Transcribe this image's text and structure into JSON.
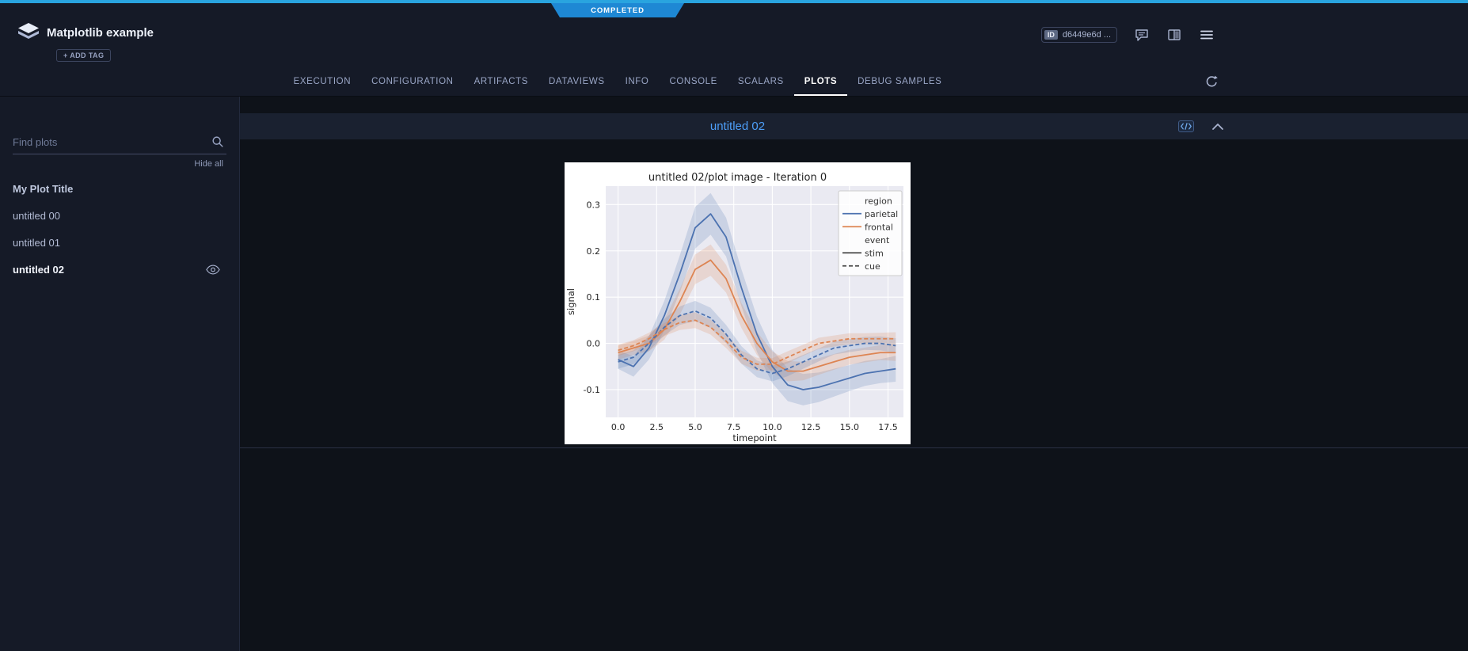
{
  "ribbon": {
    "status_label": "COMPLETED"
  },
  "header": {
    "app_title": "Matplotlib example",
    "add_tag_label": "+ ADD TAG",
    "id_chip": {
      "label": "ID",
      "value": "d6449e6d ..."
    },
    "icons": [
      "app-logo",
      "comment-icon",
      "panels-icon",
      "menu-icon"
    ]
  },
  "tabs": {
    "items": [
      {
        "label": "EXECUTION",
        "active": false
      },
      {
        "label": "CONFIGURATION",
        "active": false
      },
      {
        "label": "ARTIFACTS",
        "active": false
      },
      {
        "label": "DATAVIEWS",
        "active": false
      },
      {
        "label": "INFO",
        "active": false
      },
      {
        "label": "CONSOLE",
        "active": false
      },
      {
        "label": "SCALARS",
        "active": false
      },
      {
        "label": "PLOTS",
        "active": true
      },
      {
        "label": "DEBUG SAMPLES",
        "active": false
      }
    ],
    "icons": [
      "refresh-icon"
    ]
  },
  "sidebar": {
    "search_placeholder": "Find plots",
    "search_value": "",
    "hide_all_label": "Hide all",
    "plots": [
      {
        "label": "My Plot Title",
        "active": false
      },
      {
        "label": "untitled 00",
        "active": false
      },
      {
        "label": "untitled 01",
        "active": false
      },
      {
        "label": "untitled 02",
        "active": true
      }
    ],
    "icons": [
      "search-icon",
      "eye-icon"
    ]
  },
  "plot_section": {
    "title": "untitled 02",
    "icons": [
      "code-view-icon",
      "collapse-icon"
    ]
  },
  "colors": {
    "accent_blue": "#4d9ef8",
    "status_blue": "#1e88d4",
    "series_blue": "#4c72b0",
    "series_orange": "#dd8452",
    "axes_bg": "#eaeaf2"
  },
  "chart_data": {
    "type": "line",
    "title": "untitled 02/plot image - Iteration 0",
    "xlabel": "timepoint",
    "ylabel": "signal",
    "xlim": [
      -0.8,
      18.5
    ],
    "ylim": [
      -0.16,
      0.34
    ],
    "xticks": [
      0.0,
      2.5,
      5.0,
      7.5,
      10.0,
      12.5,
      15.0,
      17.5
    ],
    "yticks": [
      -0.1,
      0.0,
      0.1,
      0.2,
      0.3
    ],
    "grid": true,
    "legend_position": "upper right",
    "x": [
      0,
      1,
      2,
      3,
      4,
      5,
      6,
      7,
      8,
      9,
      10,
      11,
      12,
      13,
      14,
      15,
      16,
      17,
      18
    ],
    "series": [
      {
        "name": "parietal / stim",
        "color": "#4c72b0",
        "dash": null,
        "values": [
          -0.035,
          -0.05,
          -0.01,
          0.06,
          0.15,
          0.25,
          0.28,
          0.23,
          0.12,
          0.02,
          -0.05,
          -0.09,
          -0.1,
          -0.095,
          -0.085,
          -0.075,
          -0.065,
          -0.06,
          -0.055
        ],
        "ci": [
          0.02,
          0.022,
          0.025,
          0.032,
          0.04,
          0.045,
          0.045,
          0.042,
          0.04,
          0.038,
          0.036,
          0.035,
          0.034,
          0.032,
          0.03,
          0.028,
          0.027,
          0.026,
          0.028
        ]
      },
      {
        "name": "frontal / stim",
        "color": "#dd8452",
        "dash": null,
        "values": [
          -0.02,
          -0.01,
          0.0,
          0.03,
          0.09,
          0.16,
          0.18,
          0.14,
          0.06,
          0.0,
          -0.04,
          -0.06,
          -0.06,
          -0.05,
          -0.04,
          -0.03,
          -0.025,
          -0.02,
          -0.02
        ],
        "ci": [
          0.015,
          0.015,
          0.017,
          0.022,
          0.028,
          0.032,
          0.034,
          0.03,
          0.027,
          0.025,
          0.023,
          0.022,
          0.02,
          0.018,
          0.017,
          0.016,
          0.016,
          0.016,
          0.018
        ]
      },
      {
        "name": "parietal / cue",
        "color": "#4c72b0",
        "dash": "5 3",
        "values": [
          -0.04,
          -0.03,
          0.0,
          0.035,
          0.06,
          0.07,
          0.055,
          0.02,
          -0.025,
          -0.055,
          -0.065,
          -0.055,
          -0.04,
          -0.025,
          -0.01,
          -0.005,
          0.0,
          0.0,
          -0.005
        ],
        "ci": [
          0.015,
          0.015,
          0.016,
          0.018,
          0.02,
          0.022,
          0.022,
          0.02,
          0.019,
          0.018,
          0.017,
          0.016,
          0.015,
          0.014,
          0.014,
          0.014,
          0.014,
          0.015,
          0.016
        ]
      },
      {
        "name": "frontal / cue",
        "color": "#dd8452",
        "dash": "5 3",
        "values": [
          -0.015,
          -0.005,
          0.01,
          0.03,
          0.045,
          0.05,
          0.035,
          0.005,
          -0.03,
          -0.045,
          -0.045,
          -0.03,
          -0.015,
          0.0,
          0.005,
          0.01,
          0.01,
          0.01,
          0.01
        ],
        "ci": [
          0.012,
          0.012,
          0.013,
          0.014,
          0.016,
          0.017,
          0.016,
          0.015,
          0.014,
          0.014,
          0.013,
          0.013,
          0.012,
          0.012,
          0.012,
          0.012,
          0.012,
          0.013,
          0.014
        ]
      }
    ],
    "legend": [
      {
        "label": "region",
        "type": "title"
      },
      {
        "label": "parietal",
        "color": "#4c72b0",
        "dash": null
      },
      {
        "label": "frontal",
        "color": "#dd8452",
        "dash": null
      },
      {
        "label": "event",
        "type": "title"
      },
      {
        "label": "stim",
        "color": "#4a4a4a",
        "dash": null
      },
      {
        "label": "cue",
        "color": "#4a4a4a",
        "dash": "5 3"
      }
    ]
  }
}
